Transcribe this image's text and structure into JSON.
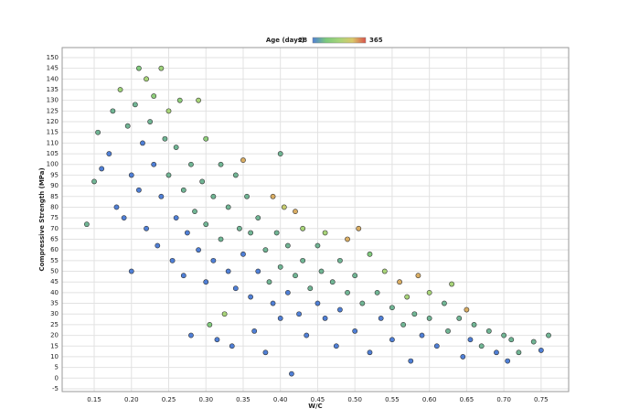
{
  "chart_data": {
    "type": "scatter",
    "xlabel": "W/C",
    "ylabel": "Compressive Strength (MPa)",
    "colorbar": {
      "label": "Age (days)",
      "range": [
        28,
        365
      ],
      "colors": [
        "#4f7fd6",
        "#7cc97c",
        "#a6d47a",
        "#d9c86a",
        "#d9534a"
      ]
    },
    "xlim": [
      0.107,
      0.787
    ],
    "ylim": [
      -6.3,
      154.7
    ],
    "xticks": [
      0.15,
      {
        "value": 0.2,
        "label": "0.20"
      },
      0.25,
      {
        "value": 0.3,
        "label": "0.30"
      },
      0.35,
      {
        "value": 0.4,
        "label": "0.40"
      },
      0.45,
      {
        "value": 0.5,
        "label": "0.50"
      },
      0.55,
      {
        "value": 0.6,
        "label": "0.60"
      },
      0.65,
      {
        "value": 0.7,
        "label": "0.70"
      },
      0.75
    ],
    "yticks": [
      -5,
      0,
      5,
      10,
      15,
      20,
      25,
      30,
      35,
      40,
      45,
      50,
      55,
      60,
      65,
      70,
      75,
      80,
      85,
      90,
      95,
      100,
      105,
      110,
      115,
      120,
      125,
      130,
      135,
      140,
      145,
      150
    ],
    "grid": true,
    "x": [
      0.14,
      0.15,
      0.155,
      0.16,
      0.17,
      0.175,
      0.18,
      0.185,
      0.19,
      0.195,
      0.2,
      0.2,
      0.205,
      0.21,
      0.21,
      0.215,
      0.22,
      0.22,
      0.225,
      0.23,
      0.23,
      0.235,
      0.24,
      0.24,
      0.245,
      0.25,
      0.25,
      0.255,
      0.26,
      0.26,
      0.265,
      0.27,
      0.27,
      0.275,
      0.28,
      0.28,
      0.285,
      0.29,
      0.29,
      0.295,
      0.3,
      0.3,
      0.3,
      0.305,
      0.31,
      0.31,
      0.315,
      0.32,
      0.32,
      0.325,
      0.33,
      0.33,
      0.335,
      0.34,
      0.34,
      0.345,
      0.35,
      0.35,
      0.355,
      0.36,
      0.36,
      0.365,
      0.37,
      0.37,
      0.38,
      0.38,
      0.385,
      0.39,
      0.39,
      0.395,
      0.4,
      0.4,
      0.4,
      0.405,
      0.41,
      0.41,
      0.415,
      0.42,
      0.42,
      0.425,
      0.43,
      0.43,
      0.435,
      0.44,
      0.45,
      0.45,
      0.455,
      0.46,
      0.46,
      0.47,
      0.475,
      0.48,
      0.48,
      0.49,
      0.49,
      0.5,
      0.5,
      0.505,
      0.51,
      0.52,
      0.52,
      0.53,
      0.535,
      0.54,
      0.55,
      0.55,
      0.56,
      0.565,
      0.57,
      0.575,
      0.58,
      0.585,
      0.59,
      0.6,
      0.6,
      0.61,
      0.62,
      0.625,
      0.63,
      0.64,
      0.645,
      0.65,
      0.655,
      0.66,
      0.67,
      0.68,
      0.69,
      0.7,
      0.705,
      0.71,
      0.72,
      0.74,
      0.75,
      0.76
    ],
    "y": [
      72,
      92,
      115,
      98,
      105,
      125,
      80,
      135,
      75,
      118,
      50,
      95,
      128,
      145,
      88,
      110,
      140,
      70,
      120,
      100,
      132,
      62,
      145,
      85,
      112,
      125,
      95,
      55,
      108,
      75,
      130,
      88,
      48,
      68,
      100,
      20,
      78,
      130,
      60,
      92,
      112,
      45,
      72,
      25,
      85,
      55,
      18,
      100,
      65,
      30,
      50,
      80,
      15,
      95,
      42,
      70,
      58,
      102,
      85,
      38,
      68,
      22,
      75,
      50,
      60,
      12,
      45,
      85,
      35,
      68,
      105,
      52,
      28,
      80,
      40,
      62,
      2,
      78,
      48,
      30,
      70,
      55,
      20,
      42,
      62,
      35,
      50,
      28,
      68,
      45,
      15,
      55,
      32,
      65,
      40,
      22,
      48,
      70,
      35,
      58,
      12,
      40,
      28,
      50,
      33,
      18,
      45,
      25,
      38,
      8,
      30,
      48,
      20,
      40,
      28,
      15,
      35,
      22,
      44,
      28,
      10,
      32,
      18,
      25,
      15,
      22,
      12,
      20,
      8,
      18,
      12,
      17,
      13,
      20
    ],
    "age": [
      90,
      90,
      90,
      28,
      28,
      90,
      28,
      180,
      28,
      90,
      28,
      28,
      90,
      120,
      28,
      28,
      200,
      28,
      90,
      28,
      150,
      28,
      180,
      28,
      90,
      200,
      90,
      28,
      90,
      28,
      150,
      90,
      28,
      28,
      90,
      28,
      90,
      200,
      28,
      90,
      150,
      28,
      90,
      120,
      90,
      28,
      28,
      90,
      90,
      200,
      28,
      90,
      28,
      90,
      28,
      90,
      28,
      300,
      90,
      28,
      90,
      28,
      90,
      28,
      90,
      28,
      90,
      300,
      28,
      90,
      90,
      90,
      28,
      250,
      28,
      90,
      28,
      300,
      90,
      28,
      200,
      90,
      28,
      90,
      90,
      28,
      90,
      28,
      200,
      90,
      28,
      90,
      28,
      300,
      90,
      28,
      90,
      300,
      90,
      120,
      28,
      90,
      28,
      200,
      90,
      28,
      300,
      90,
      200,
      28,
      90,
      300,
      28,
      200,
      90,
      28,
      90,
      90,
      200,
      90,
      28,
      300,
      28,
      90,
      90,
      90,
      28,
      90,
      28,
      90,
      90,
      90,
      28,
      90
    ]
  }
}
